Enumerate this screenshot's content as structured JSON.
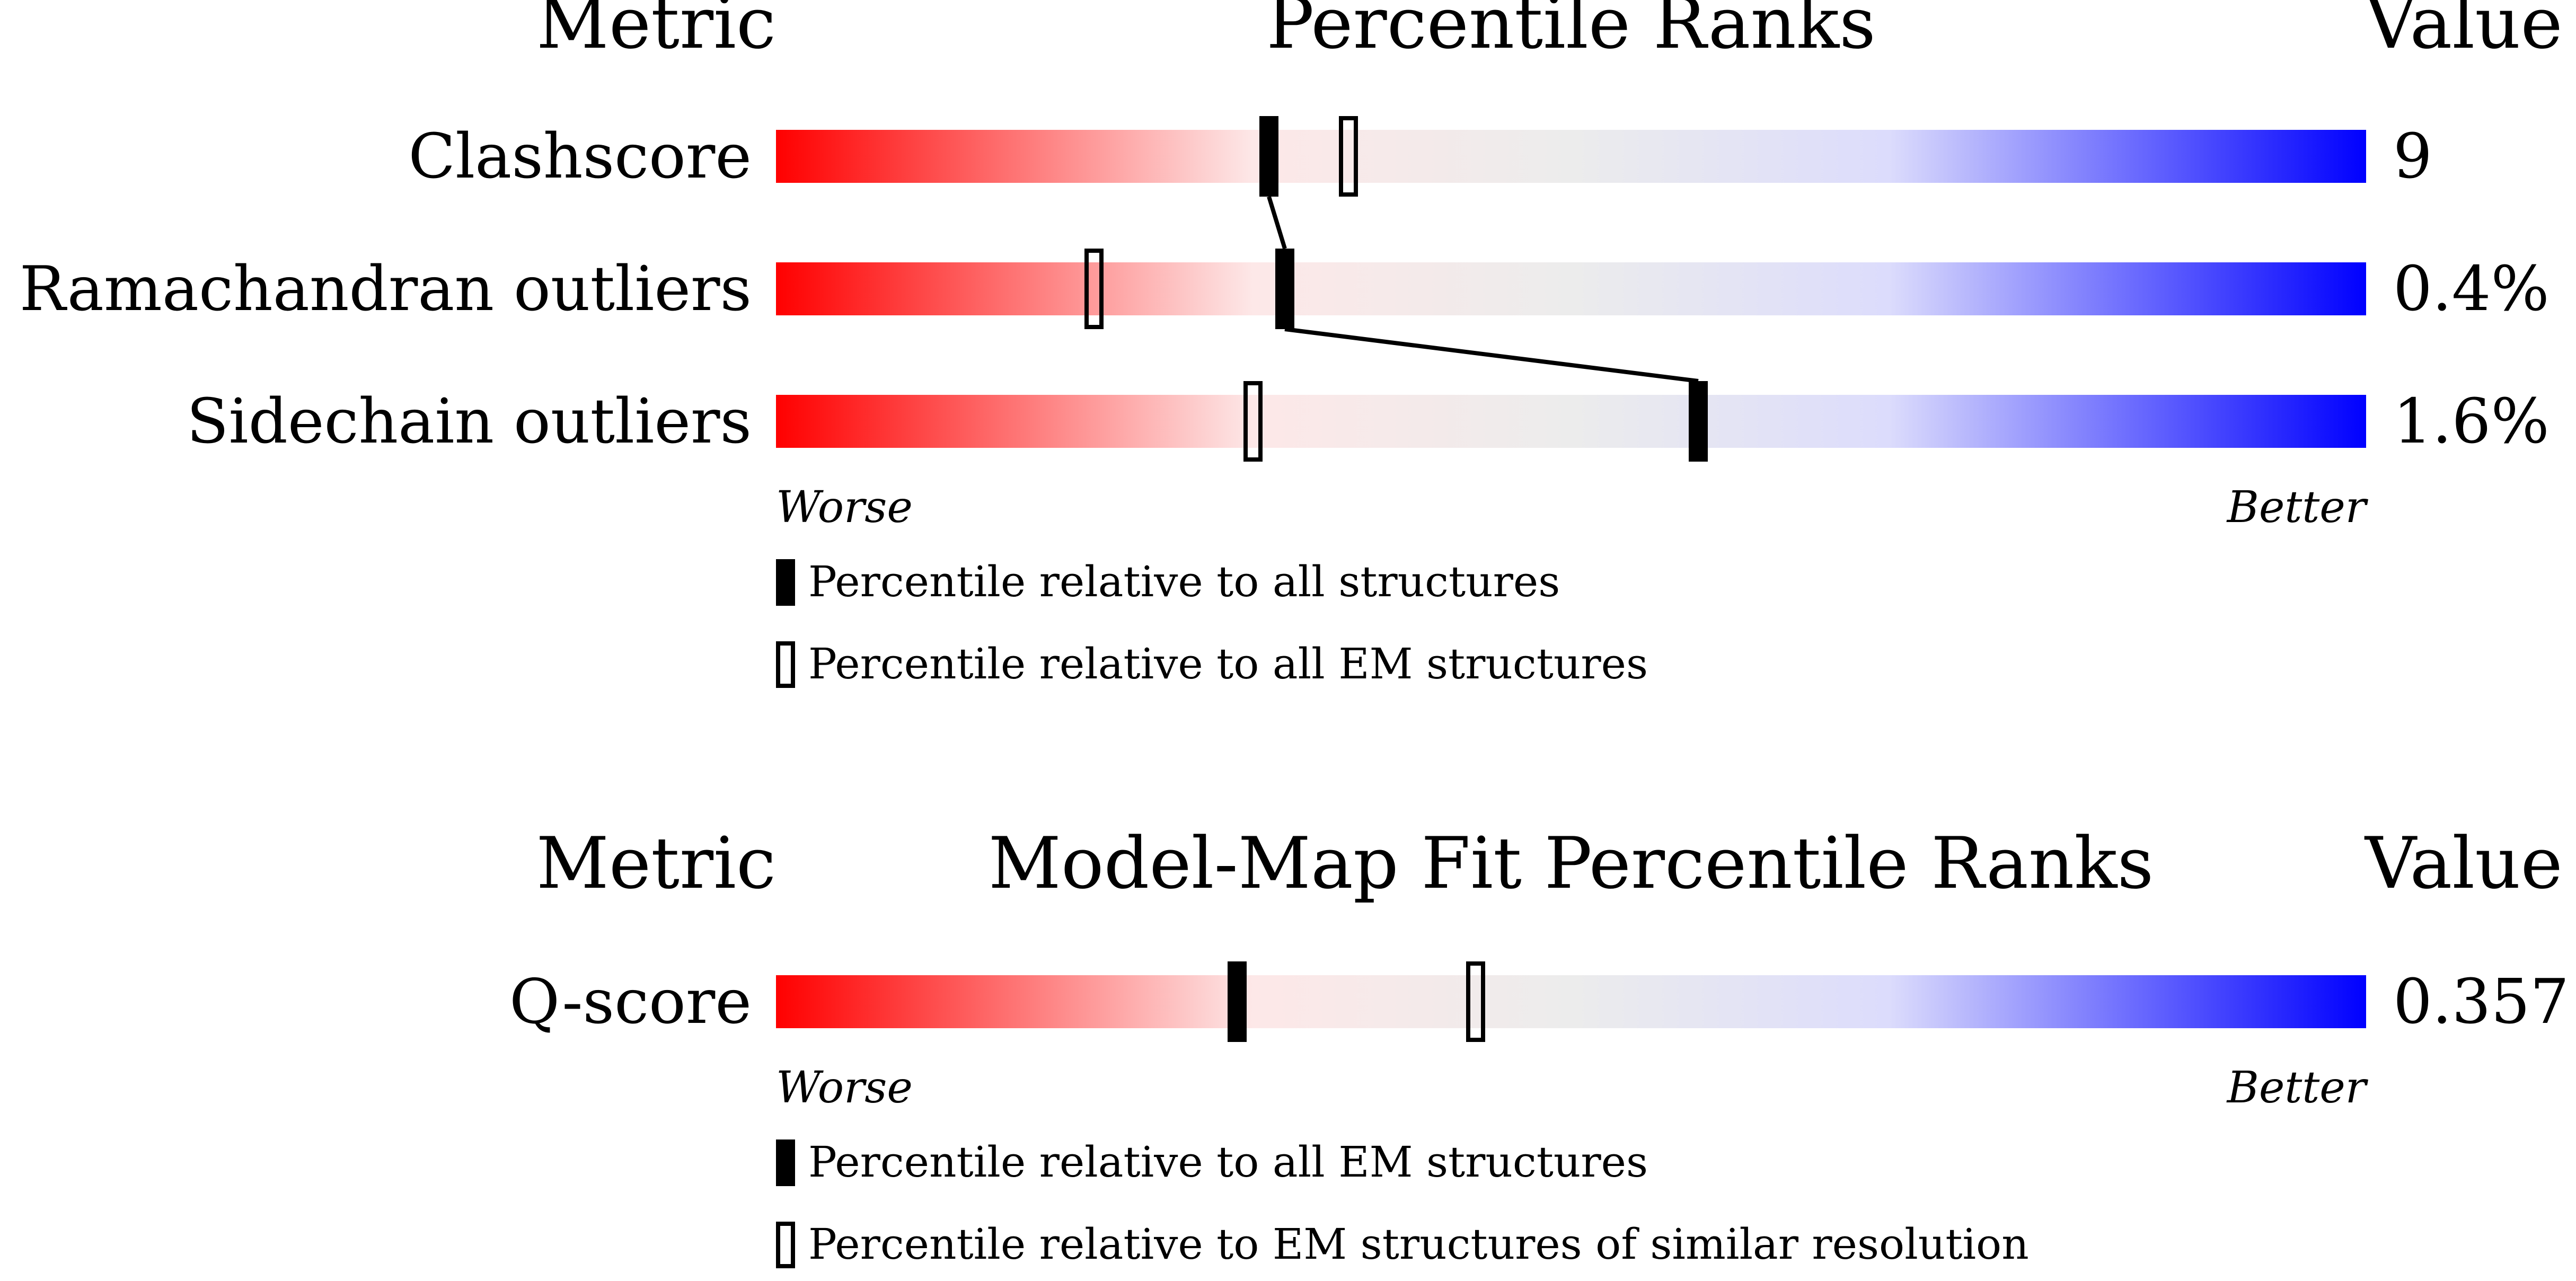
{
  "colors": {
    "worse": "#ff0000",
    "mid_pink": "#fde8e8",
    "neutral": "#ececec",
    "mid_blue": "#dcdcfc",
    "better": "#0000ff",
    "marker": "#000000"
  },
  "chart_data": [
    {
      "type": "bar",
      "headers": {
        "metric": "Metric",
        "ranks": "Percentile Ranks",
        "value": "Value"
      },
      "scale": {
        "min": 0,
        "max": 100,
        "worse_label": "Worse",
        "better_label": "Better"
      },
      "rows": [
        {
          "label": "Clashscore",
          "value": "9",
          "percentile_all": 31,
          "percentile_em": 36
        },
        {
          "label": "Ramachandran outliers",
          "value": "0.4%",
          "percentile_all": 32,
          "percentile_em": 20
        },
        {
          "label": "Sidechain outliers",
          "value": "1.6%",
          "percentile_all": 58,
          "percentile_em": 30
        }
      ],
      "connect_filled_markers": true,
      "legend": [
        {
          "marker": "filled",
          "label": "Percentile relative to all structures"
        },
        {
          "marker": "open",
          "label": "Percentile relative to all EM structures"
        }
      ]
    },
    {
      "type": "bar",
      "headers": {
        "metric": "Metric",
        "ranks": "Model-Map Fit Percentile Ranks",
        "value": "Value"
      },
      "scale": {
        "min": 0,
        "max": 100,
        "worse_label": "Worse",
        "better_label": "Better"
      },
      "rows": [
        {
          "label": "Q-score",
          "value": "0.357",
          "percentile_all": 29,
          "percentile_em": 44
        }
      ],
      "connect_filled_markers": false,
      "legend": [
        {
          "marker": "filled",
          "label": "Percentile relative to all EM structures"
        },
        {
          "marker": "open",
          "label": "Percentile relative to EM structures of similar resolution"
        }
      ]
    }
  ]
}
